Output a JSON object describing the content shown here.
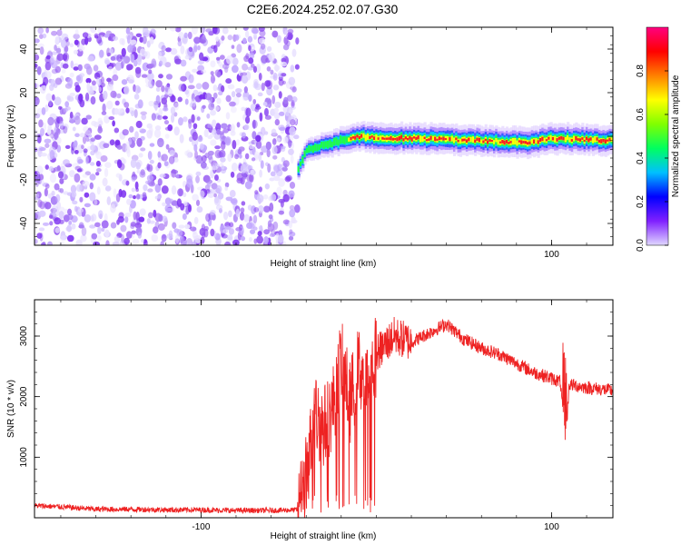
{
  "figure": {
    "title": "C2E6.2024.252.02.07.G30"
  },
  "chart_data": [
    {
      "type": "heatmap",
      "xlabel": "Height of straight line (km)",
      "ylabel": "Frequency (Hz)",
      "xlim": [
        -195,
        135
      ],
      "ylim": [
        -50,
        50
      ],
      "xticks": [
        -100,
        100
      ],
      "yticks": [
        -40,
        -20,
        0,
        20,
        40
      ],
      "grid": false,
      "noise_region_x": [
        -195,
        -45
      ],
      "signal_ridge": [
        {
          "x": -45,
          "y": -15
        },
        {
          "x": -40,
          "y": -6
        },
        {
          "x": -30,
          "y": -4
        },
        {
          "x": -20,
          "y": -2
        },
        {
          "x": -10,
          "y": 0
        },
        {
          "x": 0,
          "y": -1
        },
        {
          "x": 20,
          "y": -1
        },
        {
          "x": 60,
          "y": -2
        },
        {
          "x": 85,
          "y": -3
        },
        {
          "x": 100,
          "y": -1
        },
        {
          "x": 135,
          "y": -2
        }
      ],
      "colorbar": {
        "label": "Normalized spectral amplitude",
        "range": [
          0,
          1
        ],
        "ticks": [
          "0.0",
          "0.2",
          "0.4",
          "0.6",
          "0.8"
        ],
        "colormap": [
          "#e0d8ff",
          "#8020ff",
          "#0000ff",
          "#00c0ff",
          "#00ff60",
          "#80ff00",
          "#ffff00",
          "#ff8000",
          "#ff0000",
          "#ff0080"
        ]
      }
    },
    {
      "type": "line",
      "xlabel": "Height of straight line (km)",
      "ylabel": "SNR (10 * v/v)",
      "xlim": [
        -195,
        135
      ],
      "ylim": [
        0,
        3600
      ],
      "xticks": [
        -100,
        100
      ],
      "yticks": [
        1000,
        2000,
        3000
      ],
      "grid": false,
      "color": "#ee2222",
      "series": [
        {
          "x": [
            -195,
            -180,
            -160,
            -140,
            -120,
            -100,
            -80,
            -60,
            -45,
            -40,
            -35,
            -30,
            -25,
            -20,
            -15,
            -10,
            -5,
            0,
            10,
            20,
            30,
            40,
            50,
            60,
            70,
            80,
            90,
            100,
            105,
            108,
            110,
            120,
            135
          ],
          "y": [
            200,
            180,
            140,
            140,
            130,
            130,
            120,
            120,
            130,
            700,
            1700,
            1500,
            1800,
            2600,
            1900,
            2500,
            2200,
            2700,
            3000,
            2900,
            3050,
            3200,
            2950,
            2800,
            2700,
            2550,
            2400,
            2300,
            2250,
            1200,
            2200,
            2150,
            2100
          ]
        }
      ]
    }
  ]
}
